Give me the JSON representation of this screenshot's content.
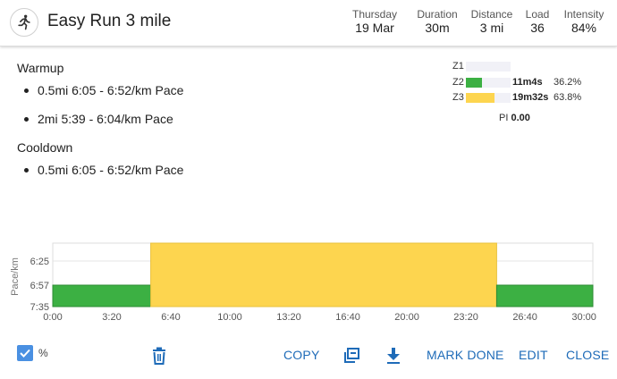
{
  "header": {
    "title": "Easy Run 3 mile",
    "stats": [
      {
        "label": "Thursday",
        "value": "19 Mar"
      },
      {
        "label": "Duration",
        "value": "30m"
      },
      {
        "label": "Distance",
        "value": "3 mi"
      },
      {
        "label": "Load",
        "value": "36"
      },
      {
        "label": "Intensity",
        "value": "84%"
      }
    ]
  },
  "workout": {
    "warmup_title": "Warmup",
    "steps": [
      "0.5mi 6:05 - 6:52/km Pace",
      "2mi 5:39 - 6:04/km Pace"
    ],
    "cooldown_title": "Cooldown",
    "cooldown_steps": [
      "0.5mi 6:05 - 6:52/km Pace"
    ]
  },
  "zones": [
    {
      "label": "Z1",
      "time": "",
      "pct": "",
      "fraction": 0.0,
      "color": "#f1f1f7"
    },
    {
      "label": "Z2",
      "time": "11m4s",
      "pct": "36.2%",
      "fraction": 0.362,
      "color": "#3cb043"
    },
    {
      "label": "Z3",
      "time": "19m32s",
      "pct": "63.8%",
      "fraction": 0.638,
      "color": "#fdd54f"
    }
  ],
  "pi": {
    "label": "PI",
    "value": "0.00"
  },
  "chart_data": {
    "type": "area",
    "ylabel": "Pace/km",
    "y_ticks": [
      "6:25",
      "6:57",
      "7:35"
    ],
    "x_ticks": [
      "0:00",
      "3:20",
      "6:40",
      "10:00",
      "13:20",
      "16:40",
      "20:00",
      "23:20",
      "26:40",
      "30:00"
    ],
    "x_range_seconds": [
      0,
      1830
    ],
    "segments": [
      {
        "start": "0:00",
        "end": "5:32",
        "zone": "Z2",
        "pace": "6:57",
        "color": "#3cb043"
      },
      {
        "start": "5:32",
        "end": "25:04",
        "zone": "Z3",
        "pace": "6:04",
        "color": "#fdd54f"
      },
      {
        "start": "25:04",
        "end": "30:30",
        "zone": "Z2",
        "pace": "6:57",
        "color": "#3cb043"
      }
    ]
  },
  "footer": {
    "percent_label": "%",
    "copy_label": "COPY",
    "mark_done_label": "MARK DONE",
    "edit_label": "EDIT",
    "close_label": "CLOSE"
  },
  "colors": {
    "accent": "#1e6bb8",
    "zone_z2": "#3cb043",
    "zone_z3": "#fdd54f",
    "checkbox": "#4a90e2"
  }
}
